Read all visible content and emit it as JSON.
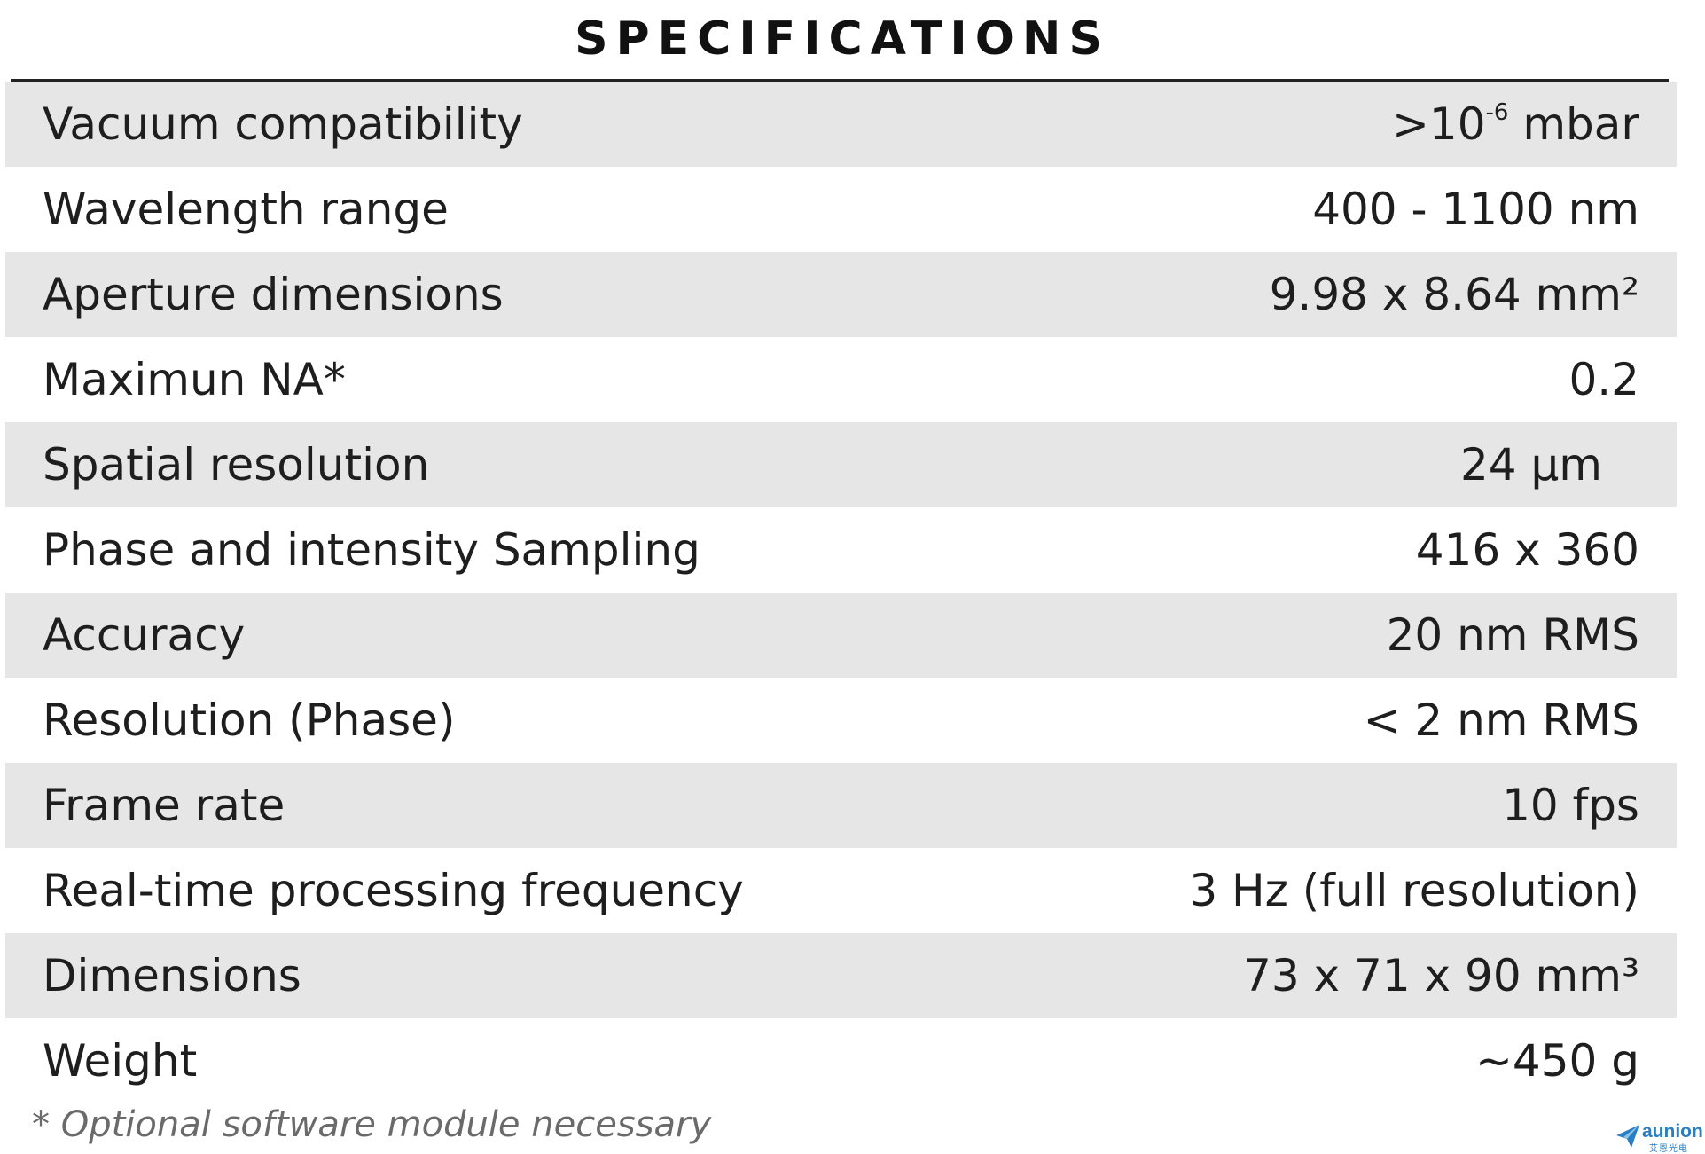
{
  "title": "SPECIFICATIONS",
  "rows": [
    {
      "label": "Vacuum compatibility",
      "value": ">10",
      "sup": "-6",
      "value_suffix": " mbar"
    },
    {
      "label": "Wavelength range",
      "value": "400 - 1100 nm"
    },
    {
      "label": "Aperture dimensions",
      "value": "9.98 x 8.64 mm²"
    },
    {
      "label": "Maximun NA*",
      "value": "0.2"
    },
    {
      "label": "Spatial resolution",
      "value": "24 µm"
    },
    {
      "label": "Phase and intensity Sampling",
      "value": "416 x 360"
    },
    {
      "label": "Accuracy",
      "value": "20 nm RMS"
    },
    {
      "label": "Resolution (Phase)",
      "value": "< 2 nm RMS"
    },
    {
      "label": "Frame rate",
      "value": "10 fps"
    },
    {
      "label": "Real-time processing frequency",
      "value": "3 Hz (full resolution)"
    },
    {
      "label": "Dimensions",
      "value": "73 x 71 x 90 mm³"
    },
    {
      "label": "Weight",
      "value": "~450 g"
    }
  ],
  "footnote": "* Optional software module necessary",
  "logo": {
    "name": "aunion",
    "subtitle": "艾恩光电",
    "icon": "paper-plane-icon",
    "color": "#2a7fc4"
  },
  "colors": {
    "shaded_row": "#e6e6e6",
    "text": "#1e1e1e",
    "footnote": "#6a6a6a"
  }
}
